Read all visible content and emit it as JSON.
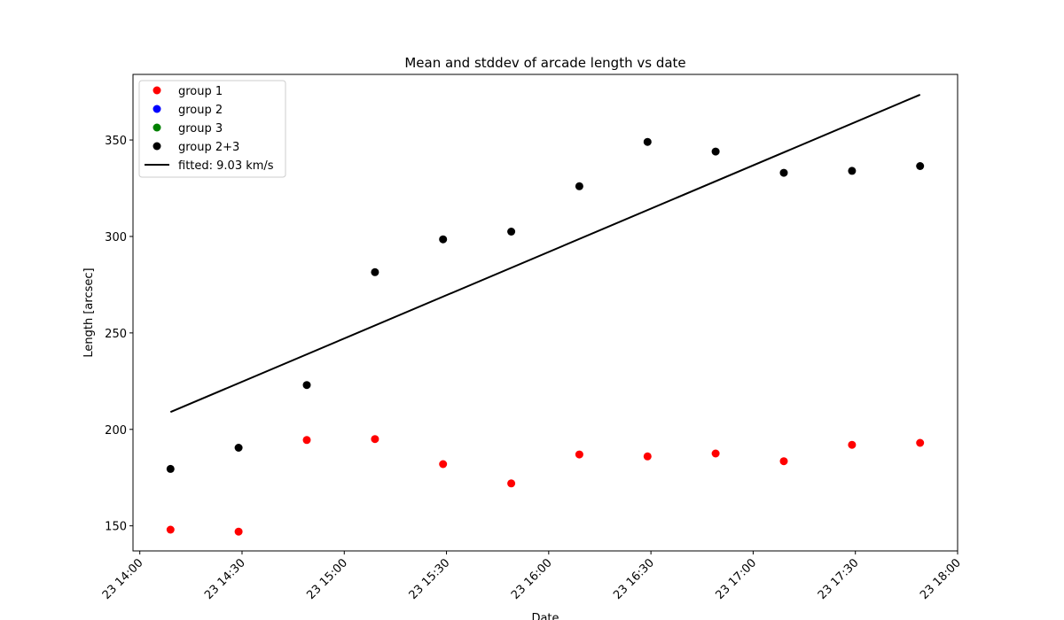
{
  "chart_data": {
    "type": "scatter",
    "title": "Mean and stddev of arcade length vs date",
    "xlabel": "Date",
    "ylabel": "Length [arcsec]",
    "x_type": "datetime",
    "xlim": [
      "2023-01-23T13:58",
      "2023-01-23T18:00"
    ],
    "ylim": [
      137,
      384
    ],
    "x_ticks": [
      {
        "value": "2023-01-23T14:00",
        "label": "23 14:00"
      },
      {
        "value": "2023-01-23T14:30",
        "label": "23 14:30"
      },
      {
        "value": "2023-01-23T15:00",
        "label": "23 15:00"
      },
      {
        "value": "2023-01-23T15:30",
        "label": "23 15:30"
      },
      {
        "value": "2023-01-23T16:00",
        "label": "23 16:00"
      },
      {
        "value": "2023-01-23T16:30",
        "label": "23 16:30"
      },
      {
        "value": "2023-01-23T17:00",
        "label": "23 17:00"
      },
      {
        "value": "2023-01-23T17:30",
        "label": "23 17:30"
      },
      {
        "value": "2023-01-23T18:00",
        "label": "23 18:00"
      }
    ],
    "y_ticks": [
      150,
      200,
      250,
      300,
      350
    ],
    "grid": false,
    "legend_position": "top-left",
    "series": [
      {
        "name": "group 1",
        "kind": "scatter",
        "color": "#ff0000",
        "points": [
          {
            "x": "2023-01-23T14:09",
            "y": 148
          },
          {
            "x": "2023-01-23T14:29",
            "y": 147
          },
          {
            "x": "2023-01-23T14:49",
            "y": 194.5
          },
          {
            "x": "2023-01-23T15:09",
            "y": 195
          },
          {
            "x": "2023-01-23T15:29",
            "y": 182
          },
          {
            "x": "2023-01-23T15:49",
            "y": 172
          },
          {
            "x": "2023-01-23T16:09",
            "y": 187
          },
          {
            "x": "2023-01-23T16:29",
            "y": 186
          },
          {
            "x": "2023-01-23T16:49",
            "y": 187.5
          },
          {
            "x": "2023-01-23T17:09",
            "y": 183.5
          },
          {
            "x": "2023-01-23T17:29",
            "y": 192
          },
          {
            "x": "2023-01-23T17:49",
            "y": 193
          }
        ]
      },
      {
        "name": "group 2",
        "kind": "scatter",
        "color": "#0000ff",
        "points": []
      },
      {
        "name": "group 3",
        "kind": "scatter",
        "color": "#008000",
        "points": []
      },
      {
        "name": "group 2+3",
        "kind": "scatter",
        "color": "#000000",
        "points": [
          {
            "x": "2023-01-23T14:09",
            "y": 179.5
          },
          {
            "x": "2023-01-23T14:29",
            "y": 190.5
          },
          {
            "x": "2023-01-23T14:49",
            "y": 223
          },
          {
            "x": "2023-01-23T15:09",
            "y": 281.5
          },
          {
            "x": "2023-01-23T15:29",
            "y": 298.5
          },
          {
            "x": "2023-01-23T15:49",
            "y": 302.5
          },
          {
            "x": "2023-01-23T16:09",
            "y": 326
          },
          {
            "x": "2023-01-23T16:29",
            "y": 349
          },
          {
            "x": "2023-01-23T16:49",
            "y": 344
          },
          {
            "x": "2023-01-23T17:09",
            "y": 333
          },
          {
            "x": "2023-01-23T17:29",
            "y": 334
          },
          {
            "x": "2023-01-23T17:49",
            "y": 336.5
          }
        ]
      },
      {
        "name": "fitted: 9.03 km/s",
        "kind": "line",
        "color": "#000000",
        "points": [
          {
            "x": "2023-01-23T14:09",
            "y": 209
          },
          {
            "x": "2023-01-23T17:49",
            "y": 373.5
          }
        ]
      }
    ]
  }
}
